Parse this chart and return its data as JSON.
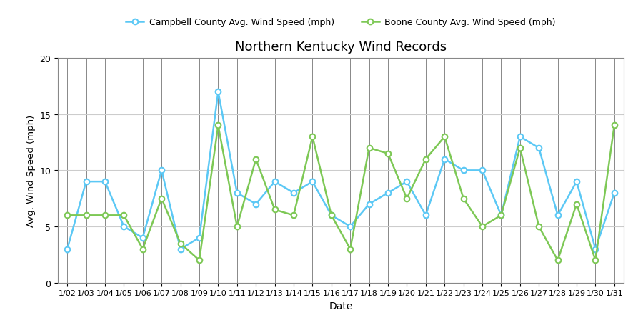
{
  "dates": [
    "1/02",
    "1/03",
    "1/04",
    "1/05",
    "1/06",
    "1/07",
    "1/08",
    "1/09",
    "1/10",
    "1/11",
    "1/12",
    "1/13",
    "1/14",
    "1/15",
    "1/16",
    "1/17",
    "1/18",
    "1/19",
    "1/20",
    "1/21",
    "1/22",
    "1/23",
    "1/24",
    "1/25",
    "1/26",
    "1/27",
    "1/28",
    "1/29",
    "1/30",
    "1/31"
  ],
  "campbell": [
    3,
    9,
    9,
    5,
    4,
    10,
    3,
    4,
    17,
    8,
    7,
    9,
    8,
    9,
    6,
    5,
    7,
    8,
    9,
    6,
    11,
    10,
    10,
    6,
    13,
    12,
    6,
    9,
    3,
    8
  ],
  "boone": [
    6,
    6,
    6,
    6,
    3,
    7.5,
    3.5,
    2,
    14,
    5,
    11,
    6.5,
    6,
    13,
    6,
    3,
    12,
    11.5,
    7.5,
    11,
    13,
    7.5,
    5,
    6,
    12,
    5,
    2,
    7,
    2,
    14
  ],
  "campbell_color": "#5BC8F5",
  "boone_color": "#7DC855",
  "title": "Northern Kentucky Wind Records",
  "xlabel": "Date",
  "ylabel": "Avg. Wind Speed (mph)",
  "ylim": [
    0,
    20
  ],
  "yticks": [
    0,
    5,
    10,
    15,
    20
  ],
  "campbell_label": "Campbell County Avg. Wind Speed (mph)",
  "boone_label": "Boone County Avg. Wind Speed (mph)",
  "bg_color": "#ffffff",
  "grid_color_v": "#888888",
  "grid_color_h": "#cccccc"
}
